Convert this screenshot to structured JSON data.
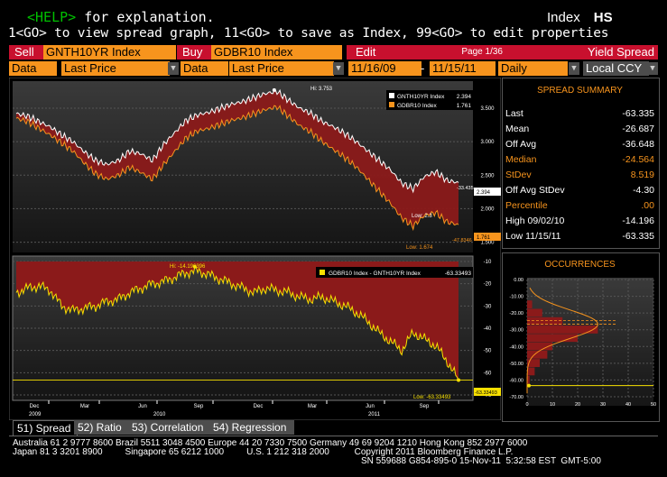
{
  "header": {
    "help_key": "<HELP>",
    "help_text": " for explanation.",
    "function_label": "Index",
    "function_code": "HS",
    "instructions": "1<GO> to view spread graph, 11<GO> to save as Index, 99<GO> to edit properties"
  },
  "toolbar": {
    "sell_label": "Sell",
    "sell_security": "GNTH10YR Index",
    "buy_label": "Buy",
    "buy_security": "GDBR10 Index",
    "edit_label": "Edit",
    "page": "Page 1/36",
    "view_title": "Yield Spread",
    "data_label_1": "Data",
    "data_value_1": "Last Price",
    "data_label_2": "Data",
    "data_value_2": "Last Price",
    "start_date": "11/16/09",
    "date_separator": "-",
    "end_date": "11/15/11",
    "periodicity": "Daily",
    "currency": "Local CCY"
  },
  "summary": {
    "title": "SPREAD SUMMARY",
    "rows": [
      {
        "label": "Last",
        "value": "-63.335",
        "color": "#ffffff"
      },
      {
        "label": "Mean",
        "value": "-26.687",
        "color": "#ffffff"
      },
      {
        "label": "Off Avg",
        "value": "-36.648",
        "color": "#ffffff"
      },
      {
        "label": "Median",
        "value": "-24.564",
        "color": "#f7941d"
      },
      {
        "label": "StDev",
        "value": "8.519",
        "color": "#f7941d"
      },
      {
        "label": "Off Avg StDev",
        "value": "-4.30",
        "color": "#ffffff"
      },
      {
        "label": "Percentile",
        "value": ".00",
        "color": "#f7941d"
      },
      {
        "label": "High 09/02/10",
        "value": "-14.196",
        "color": "#ffffff"
      },
      {
        "label": "Low 11/15/11",
        "value": "-63.335",
        "color": "#ffffff"
      }
    ],
    "occurrences_title": "OCCURRENCES"
  },
  "tabs": [
    {
      "label": "51) Spread",
      "active": true
    },
    {
      "label": "52) Ratio",
      "active": false
    },
    {
      "label": "53) Correlation",
      "active": false
    },
    {
      "label": "54) Regression",
      "active": false
    }
  ],
  "footer": {
    "line1": "Australia 61 2 9777 8600 Brazil 5511 3048 4500 Europe 44 20 7330 7500 Germany 49 69 9204 1210 Hong Kong 852 2977 6000",
    "line2": "Japan 81 3 3201 8900         Singapore 65 6212 1000         U.S. 1 212 318 2000          Copyright 2011 Bloomberg Finance L.P.",
    "line3": "SN 559688 G854-895-0 15-Nov-11  5:32:58 EST  GMT-5:00"
  },
  "colors": {
    "accent_orange": "#f7941d",
    "bloomberg_red": "#c8102e",
    "fill_red": "#7a1010",
    "series_white": "#ffffff",
    "series_orange": "#f7941d"
  },
  "chart_data": [
    {
      "type": "area",
      "legend": [
        "GNTH10YR Index",
        "GDBR10 Index"
      ],
      "legend_values": [
        "2.394",
        "1.761"
      ],
      "x_ticks": [
        "Dec",
        "Mar",
        "Jun",
        "Sep",
        "Dec",
        "Mar",
        "Jun",
        "Sep"
      ],
      "year_labels": [
        "2009",
        "2010",
        "2011"
      ],
      "y_ticks": [
        "3.500",
        "3.000",
        "2.500",
        "2.000",
        "1.500"
      ],
      "ylim": [
        1.4,
        3.85
      ],
      "annotations": {
        "high": "Hi: 3.753",
        "low_white": "Low: 2.3",
        "low_orange": "Low: 1.674",
        "last_white": "2.394",
        "last_orange": "1.761",
        "label_white": "-33.435",
        "label_orange": "-47.8346"
      },
      "series": [
        {
          "name": "GNTH10YR Index",
          "values": [
            3.42,
            3.38,
            3.3,
            3.22,
            3.1,
            3.0,
            2.85,
            2.72,
            2.66,
            2.72,
            2.86,
            2.82,
            2.72,
            2.96,
            3.14,
            3.32,
            3.4,
            3.44,
            3.5,
            3.56,
            3.6,
            3.66,
            3.72,
            3.75,
            3.62,
            3.5,
            3.42,
            3.3,
            3.22,
            3.12,
            3.0,
            2.86,
            2.72,
            2.58,
            2.38,
            2.3,
            2.48,
            2.55,
            2.42,
            2.39
          ]
        },
        {
          "name": "GDBR10 Index",
          "values": [
            3.35,
            3.3,
            3.2,
            3.1,
            2.98,
            2.86,
            2.68,
            2.52,
            2.44,
            2.5,
            2.62,
            2.54,
            2.44,
            2.66,
            2.86,
            3.06,
            3.16,
            3.2,
            3.26,
            3.32,
            3.36,
            3.42,
            3.48,
            3.52,
            3.38,
            3.24,
            3.14,
            3.0,
            2.88,
            2.76,
            2.62,
            2.44,
            2.26,
            2.08,
            1.86,
            1.74,
            1.9,
            1.94,
            1.8,
            1.76
          ]
        }
      ]
    },
    {
      "type": "area",
      "legend": [
        "GDBR10 Index - GNTH10YR Index"
      ],
      "legend_values": [
        "-63.33493"
      ],
      "y_ticks": [
        "-10",
        "-20",
        "-30",
        "-40",
        "-50",
        "-60",
        "-70"
      ],
      "ylim": [
        -70,
        -10
      ],
      "annotations": {
        "high": "Hi: -14.196396",
        "low": "Low: -63.33493",
        "last": "-63.33493"
      },
      "series": [
        {
          "name": "GDBR10 Index - GNTH10YR Index",
          "values": [
            -24,
            -22,
            -21,
            -23,
            -30,
            -32,
            -31,
            -30,
            -28,
            -27,
            -24,
            -22,
            -20,
            -19,
            -17,
            -15,
            -14.2,
            -16,
            -18,
            -20,
            -22,
            -24,
            -22,
            -23,
            -24,
            -26,
            -27,
            -26,
            -28,
            -30,
            -33,
            -37,
            -42,
            -46,
            -50,
            -42,
            -45,
            -48,
            -55,
            -63.3
          ]
        }
      ]
    },
    {
      "type": "bar",
      "title": "OCCURRENCES",
      "orientation": "horizontal",
      "categories": [
        -15,
        -20,
        -25,
        -30,
        -35,
        -40,
        -45,
        -50,
        -55,
        -60
      ],
      "values": [
        2,
        6,
        14,
        28,
        20,
        10,
        8,
        5,
        3,
        1
      ],
      "x_ticks": [
        "0",
        "10",
        "20",
        "30",
        "40",
        "50"
      ],
      "y_ticks": [
        "0.00",
        "-10.00",
        "-20.00",
        "-30.00",
        "-40.00",
        "-50.00",
        "-60.00",
        "-70.00"
      ],
      "reference_lines": {
        "last": -63.335,
        "mean": -26.687,
        "median": -24.564
      }
    }
  ]
}
